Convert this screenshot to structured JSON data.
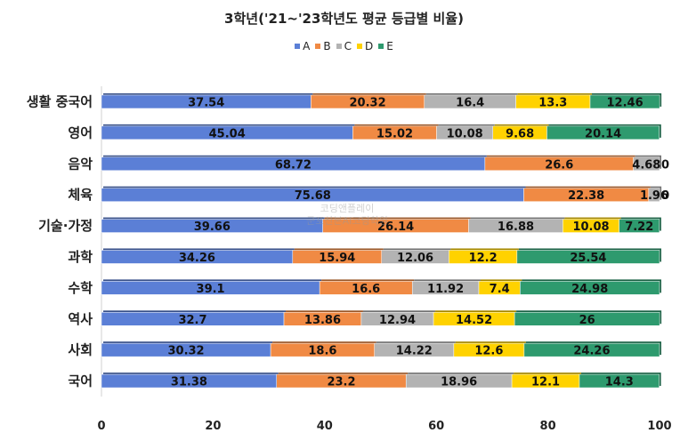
{
  "chart_data": {
    "type": "bar",
    "orientation": "horizontal",
    "stacked": true,
    "title": "3학년('21~'23학년도 평균 등급별 비율)",
    "categories": [
      "생활 중국어",
      "영어",
      "음악",
      "체육",
      "기술·가정",
      "과학",
      "수학",
      "역사",
      "사회",
      "국어"
    ],
    "series": [
      {
        "name": "A",
        "color": "#5B7FD6",
        "values": [
          37.54,
          45.04,
          68.72,
          75.68,
          39.66,
          34.26,
          39.1,
          32.7,
          30.32,
          31.38
        ]
      },
      {
        "name": "B",
        "color": "#F08A44",
        "values": [
          20.32,
          15.02,
          26.6,
          22.38,
          26.14,
          15.94,
          16.6,
          13.86,
          18.6,
          23.2
        ]
      },
      {
        "name": "C",
        "color": "#B3B3B3",
        "values": [
          16.4,
          10.08,
          4.68,
          1.96,
          16.88,
          12.06,
          11.92,
          12.94,
          14.22,
          18.96
        ]
      },
      {
        "name": "D",
        "color": "#FFD200",
        "values": [
          13.3,
          9.68,
          0,
          0,
          10.08,
          12.2,
          7.4,
          14.52,
          12.6,
          12.1
        ]
      },
      {
        "name": "E",
        "color": "#2E9A6E",
        "values": [
          12.46,
          20.14,
          0,
          0,
          7.22,
          25.54,
          24.98,
          26,
          24.26,
          14.3
        ]
      }
    ],
    "data_labels": [
      [
        "37.54",
        "20.32",
        "16.4",
        "13.3",
        "12.46"
      ],
      [
        "45.04",
        "15.02",
        "10.08",
        "9.68",
        "20.14"
      ],
      [
        "68.72",
        "26.6",
        "4.68",
        "0",
        ""
      ],
      [
        "75.68",
        "22.38",
        "1.96",
        "0",
        ""
      ],
      [
        "39.66",
        "26.14",
        "16.88",
        "10.08",
        "7.22"
      ],
      [
        "34.26",
        "15.94",
        "12.06",
        "12.2",
        "25.54"
      ],
      [
        "39.1",
        "16.6",
        "11.92",
        "7.4",
        "24.98"
      ],
      [
        "32.7",
        "13.86",
        "12.94",
        "14.52",
        "26"
      ],
      [
        "30.32",
        "18.6",
        "14.22",
        "12.6",
        "24.26"
      ],
      [
        "31.38",
        "23.2",
        "18.96",
        "12.1",
        "14.3"
      ]
    ],
    "xlim": [
      0,
      100
    ],
    "xticks": [
      "0",
      "20",
      "40",
      "60",
      "80",
      "100"
    ],
    "legend_position": "top"
  },
  "watermark": {
    "line1": "코딩앤플레이",
    "line2": "군포산본AI코딩학원"
  }
}
